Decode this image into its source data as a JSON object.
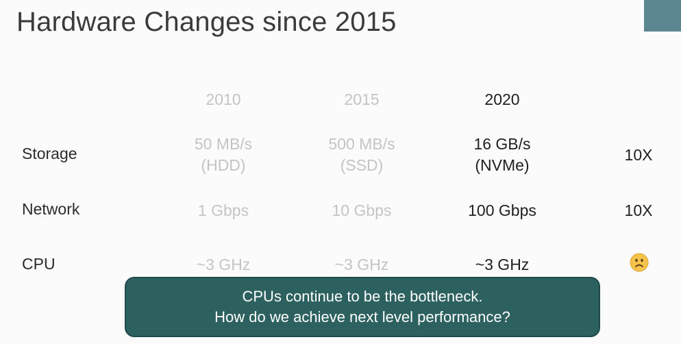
{
  "slide": {
    "title": "Hardware Changes since 2015",
    "accent_color": "#5a8790"
  },
  "table": {
    "years": [
      "2010",
      "2015",
      "2020"
    ],
    "rows": [
      {
        "label": "Storage",
        "cells": [
          {
            "value": "50 MB/s",
            "note": "(HDD)"
          },
          {
            "value": "500 MB/s",
            "note": "(SSD)"
          },
          {
            "value": "16 GB/s",
            "note": "(NVMe)"
          }
        ],
        "factor": "10X"
      },
      {
        "label": "Network",
        "cells": [
          {
            "value": "1 Gbps"
          },
          {
            "value": "10 Gbps"
          },
          {
            "value": "100 Gbps"
          }
        ],
        "factor": "10X"
      },
      {
        "label": "CPU",
        "cells": [
          {
            "value": "~3 GHz"
          },
          {
            "value": "~3 GHz"
          },
          {
            "value": "~3 GHz"
          }
        ],
        "factor_icon": "frowning-face-icon"
      }
    ]
  },
  "callout": {
    "line1": "CPUs continue to be the bottleneck.",
    "line2": "How do we achieve next level performance?",
    "background": "#2d6160"
  }
}
